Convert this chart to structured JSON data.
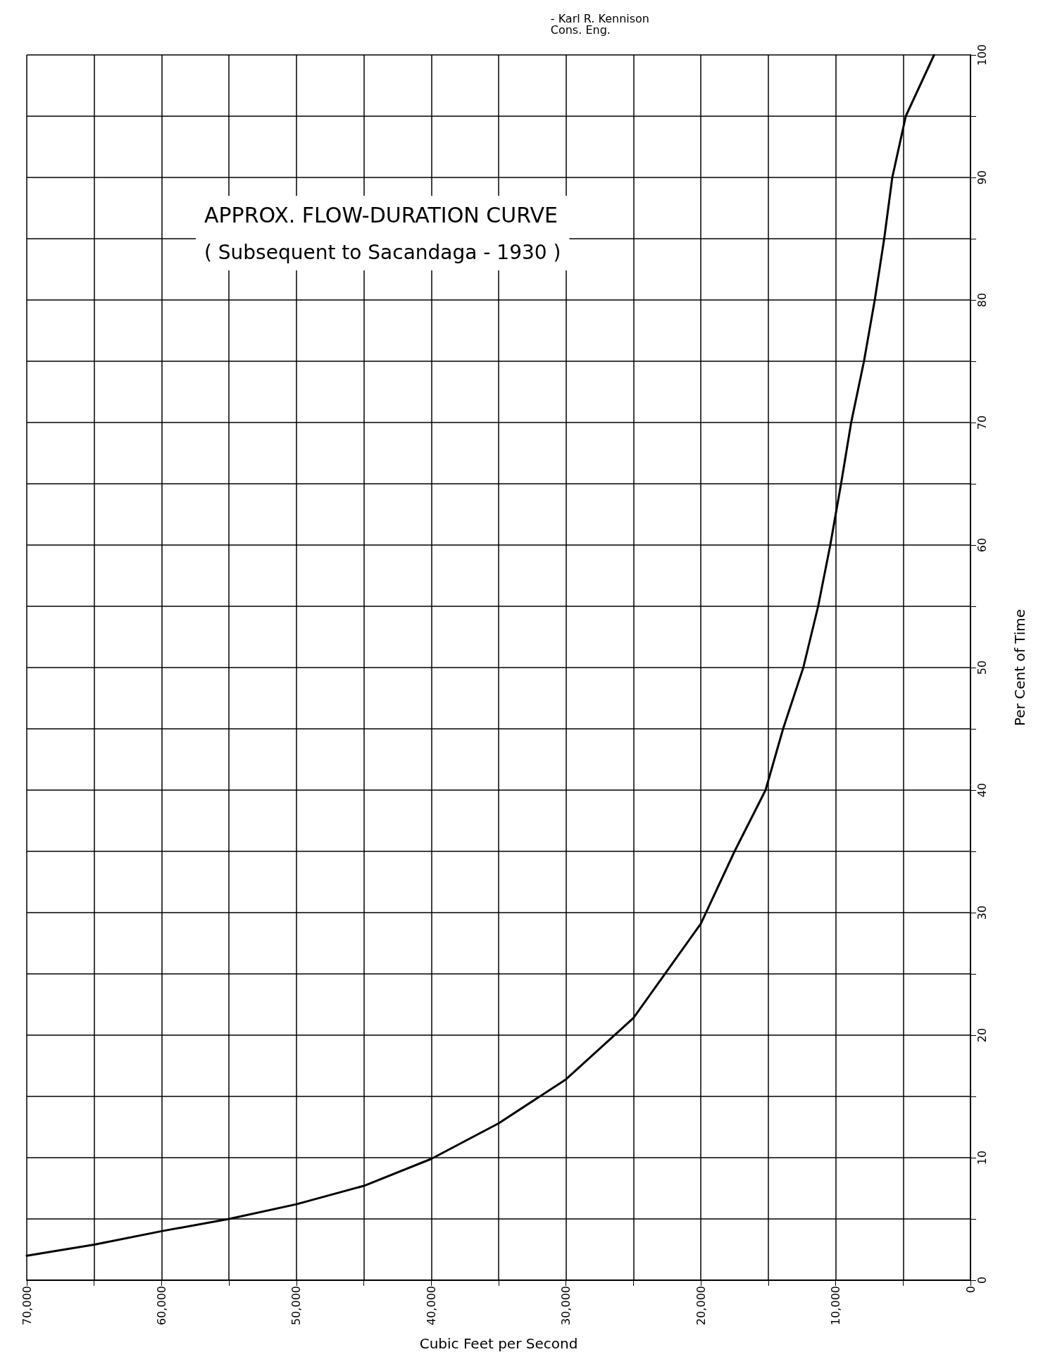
{
  "chart_data": {
    "type": "line",
    "title": "APPROX. FLOW-DURATION CURVE",
    "subtitle": "( Subsequent to Sacandaga - 1930 )",
    "xlabel": "Cubic Feet per Second",
    "ylabel": "Per Cent of Time",
    "annotations": [
      "- Karl R. Kennison\nCons. Eng."
    ],
    "series": [
      {
        "color": "#000000",
        "x": [
          70000,
          65000,
          60000,
          55000,
          50000,
          45000,
          40000,
          35000,
          30000,
          25000,
          20000,
          17500,
          15200,
          13900,
          12400,
          11300,
          10400,
          9600,
          8850,
          7900,
          7100,
          6400,
          5800,
          4800,
          2700
        ],
        "values": [
          2.0,
          2.9,
          4.0,
          5.0,
          6.2,
          7.7,
          9.9,
          12.8,
          16.4,
          21.4,
          29.1,
          35,
          40,
          45,
          50,
          55,
          60,
          65,
          70,
          75,
          80,
          85,
          90,
          95,
          100
        ]
      }
    ],
    "xlim": [
      70000,
      0
    ],
    "xticks": [
      {
        "value": 0,
        "label": "0"
      },
      {
        "value": 5000,
        "label": null
      },
      {
        "value": 10000,
        "label": "10,000"
      },
      {
        "value": 15000,
        "label": null
      },
      {
        "value": 20000,
        "label": "20,000"
      },
      {
        "value": 25000,
        "label": null
      },
      {
        "value": 30000,
        "label": "30,000"
      },
      {
        "value": 35000,
        "label": null
      },
      {
        "value": 40000,
        "label": "40,000"
      },
      {
        "value": 45000,
        "label": null
      },
      {
        "value": 50000,
        "label": "50,000"
      },
      {
        "value": 55000,
        "label": null
      },
      {
        "value": 60000,
        "label": "60,000"
      },
      {
        "value": 65000,
        "label": null
      },
      {
        "value": 70000,
        "label": "70,000"
      }
    ],
    "ylim": [
      0,
      100
    ],
    "yticks": [
      0,
      {
        "value": 5,
        "label": null
      },
      10,
      {
        "value": 15,
        "label": null
      },
      20,
      {
        "value": 25,
        "label": null
      },
      30,
      {
        "value": 35,
        "label": null
      },
      40,
      {
        "value": 45,
        "label": null
      },
      50,
      {
        "value": 55,
        "label": null
      },
      60,
      {
        "value": 65,
        "label": null
      },
      70,
      {
        "value": 75,
        "label": null
      },
      80,
      {
        "value": 85,
        "label": null
      },
      90,
      {
        "value": 95,
        "label": null
      },
      100
    ],
    "grid": true,
    "marker": "none",
    "line_style": "solid"
  }
}
